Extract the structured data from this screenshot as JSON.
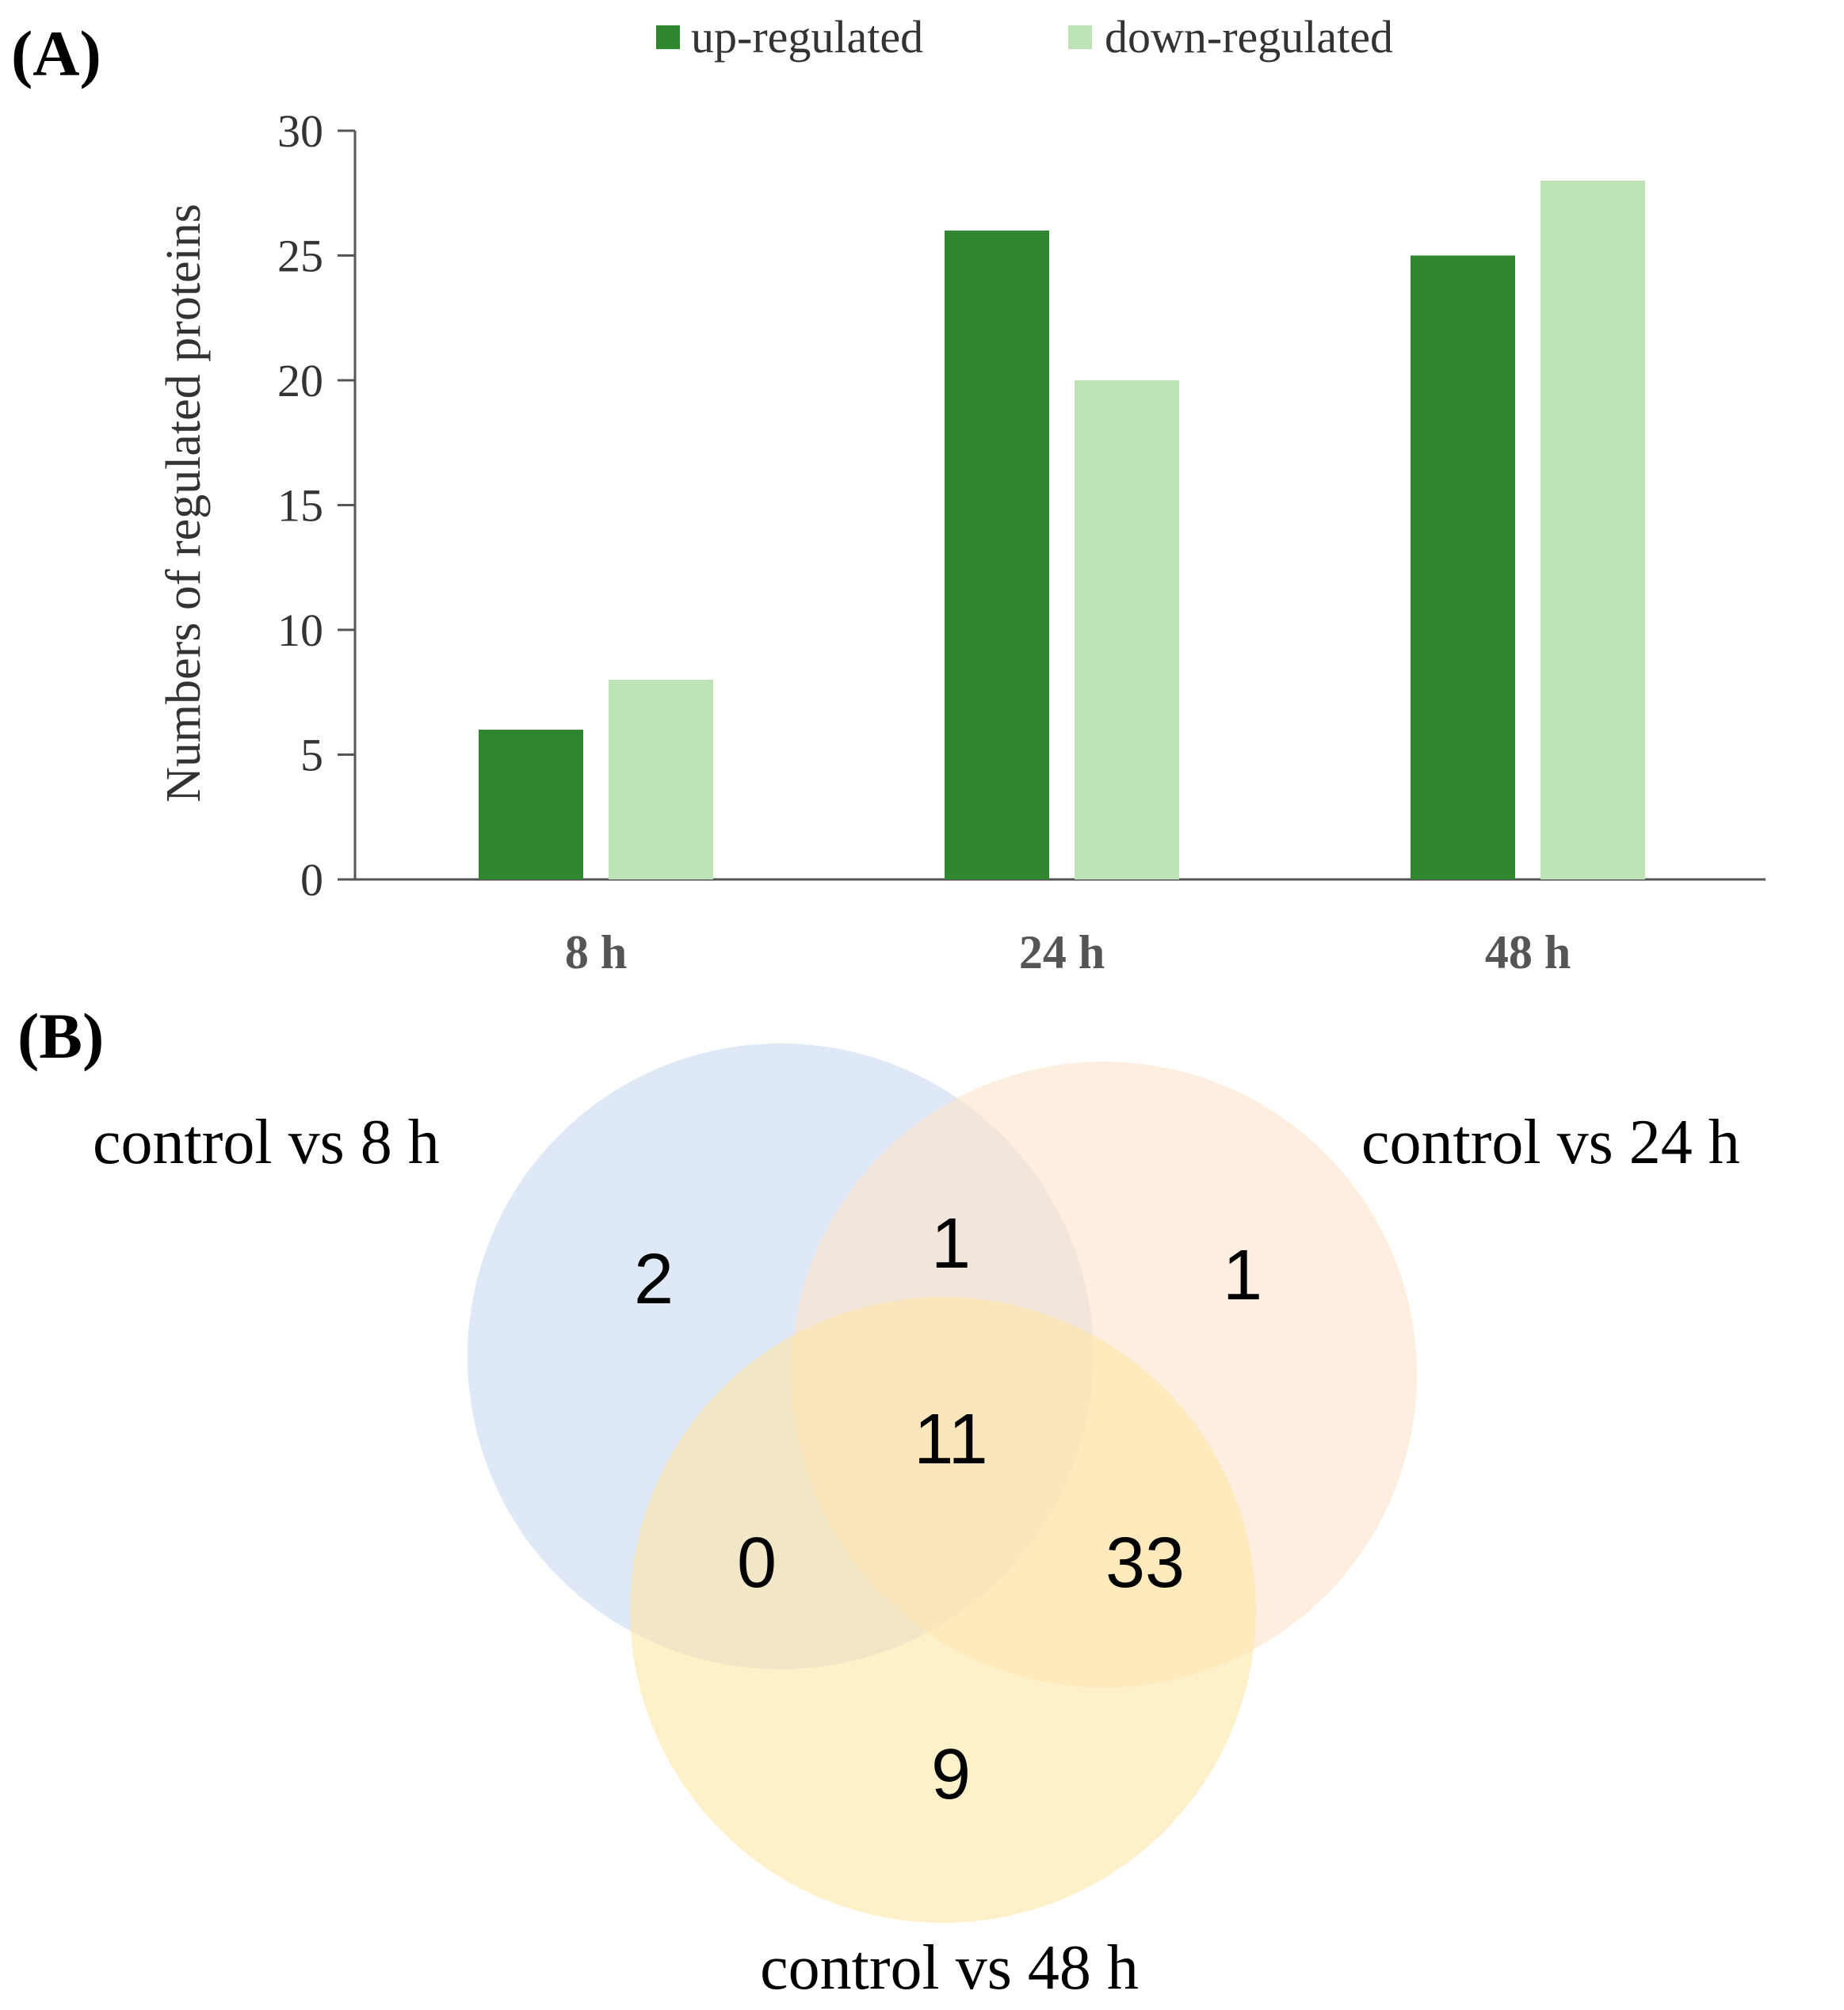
{
  "panels": {
    "a_label": "(A)",
    "b_label": "(B)"
  },
  "chart_data": [
    {
      "type": "bar",
      "title": "",
      "xlabel": "",
      "ylabel": "Numbers of regulated proteins",
      "ylim": [
        0,
        30
      ],
      "yticks": [
        0,
        5,
        10,
        15,
        20,
        25,
        30
      ],
      "categories": [
        "8 h",
        "24 h",
        "48 h"
      ],
      "series": [
        {
          "name": "up-regulated",
          "color": "#31862f",
          "values": [
            6,
            26,
            25
          ]
        },
        {
          "name": "down-regulated",
          "color": "#bde2b6",
          "values": [
            8,
            20,
            28
          ]
        }
      ],
      "legend_position": "top-center",
      "grid": false
    },
    {
      "type": "venn",
      "sets": [
        {
          "name": "control vs 8 h",
          "color": "#c9daf0"
        },
        {
          "name": "control vs 24 h",
          "color": "#fde3cc"
        },
        {
          "name": "control vs 48 h",
          "color": "#fde6a8"
        }
      ],
      "regions": [
        {
          "id": "only_8h",
          "value": "2"
        },
        {
          "id": "8h_24h",
          "value": "1"
        },
        {
          "id": "only_24h",
          "value": "1"
        },
        {
          "id": "all_three",
          "value": "11"
        },
        {
          "id": "8h_48h",
          "value": "0"
        },
        {
          "id": "24h_48h",
          "value": "33"
        },
        {
          "id": "only_48h",
          "value": "9"
        }
      ]
    }
  ]
}
